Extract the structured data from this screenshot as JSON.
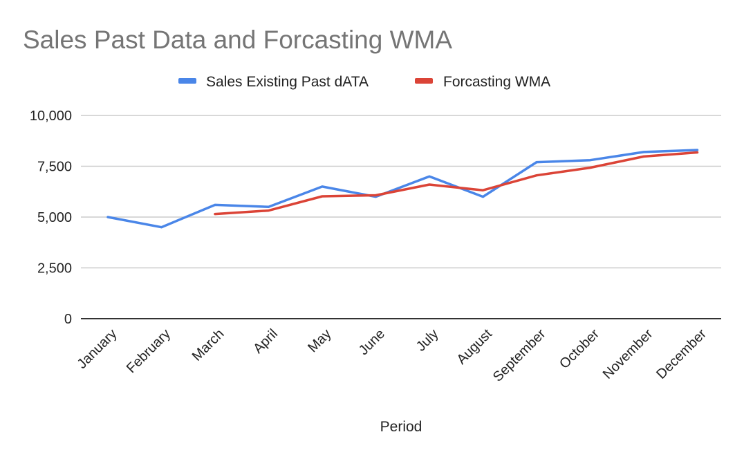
{
  "chart_data": {
    "type": "line",
    "title": "Sales Past Data and Forcasting WMA",
    "xlabel": "Period",
    "ylabel": "",
    "ylim": [
      0,
      10000
    ],
    "yticks": [
      0,
      2500,
      5000,
      7500,
      10000
    ],
    "ytick_labels": [
      "0",
      "2,500",
      "5,000",
      "7,500",
      "10,000"
    ],
    "grid": true,
    "legend_position": "top-center",
    "categories": [
      "January",
      "February",
      "March",
      "April",
      "May",
      "June",
      "July",
      "August",
      "September",
      "October",
      "November",
      "December"
    ],
    "series": [
      {
        "name": "Sales Existing Past dATA",
        "color": "#4a86e8",
        "values": [
          5000,
          4500,
          5600,
          5500,
          6500,
          6000,
          7000,
          6000,
          7700,
          7800,
          8200,
          8300
        ]
      },
      {
        "name": "Forcasting WMA",
        "color": "#db4437",
        "values": [
          null,
          null,
          5150,
          5320,
          6020,
          6070,
          6600,
          6320,
          7050,
          7430,
          7980,
          8180
        ]
      }
    ]
  }
}
